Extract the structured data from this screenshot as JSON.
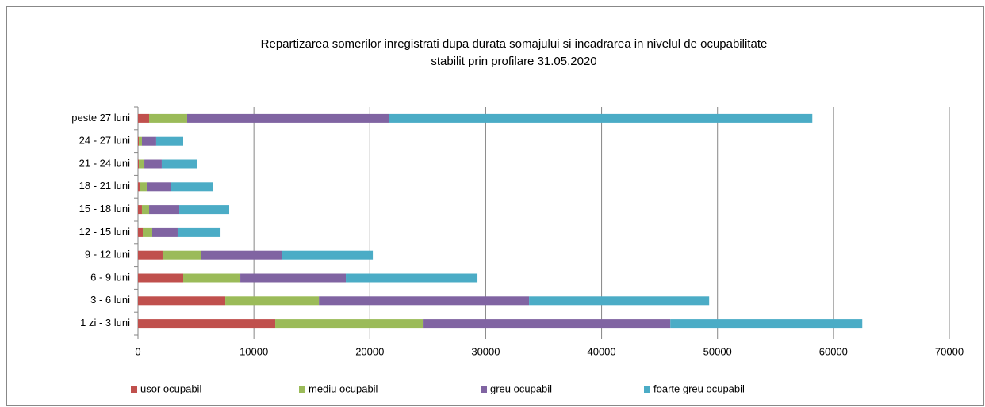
{
  "chart_data": {
    "type": "stacked_barh",
    "title": [
      "Repartizarea somerilor inregistrati dupa  durata somajului si incadrarea in nivelul de ocupabilitate",
      "stabilit prin profilare 31.05.2020"
    ],
    "categories": [
      "1 zi - 3 luni",
      "3 - 6 luni",
      "6 - 9 luni",
      "9 - 12 luni",
      "12 - 15 luni",
      "15 - 18 luni",
      "18 - 21 luni",
      "21 - 24 luni",
      "24 - 27 luni",
      "peste 27 luni"
    ],
    "series": [
      {
        "name": "usor ocupabil",
        "color": "#c0504d",
        "values": [
          11840,
          7530,
          3900,
          2120,
          410,
          340,
          140,
          70,
          70,
          960
        ]
      },
      {
        "name": "mediu ocupabil",
        "color": "#9bbb59",
        "values": [
          12730,
          8080,
          4930,
          3290,
          820,
          620,
          610,
          480,
          270,
          3280
        ]
      },
      {
        "name": "greu ocupabil",
        "color": "#8064a2",
        "values": [
          21360,
          18130,
          9100,
          6980,
          2190,
          2600,
          2060,
          1500,
          1230,
          17390
        ]
      },
      {
        "name": "foarte greu ocupabil",
        "color": "#4bacc6",
        "values": [
          16560,
          15540,
          11360,
          7870,
          3700,
          4310,
          3690,
          3080,
          2330,
          36550
        ]
      }
    ],
    "xlim": [
      0,
      70000
    ],
    "xticks": [
      0,
      10000,
      20000,
      30000,
      40000,
      50000,
      60000,
      70000
    ],
    "grid": true,
    "legend": "bottom"
  }
}
